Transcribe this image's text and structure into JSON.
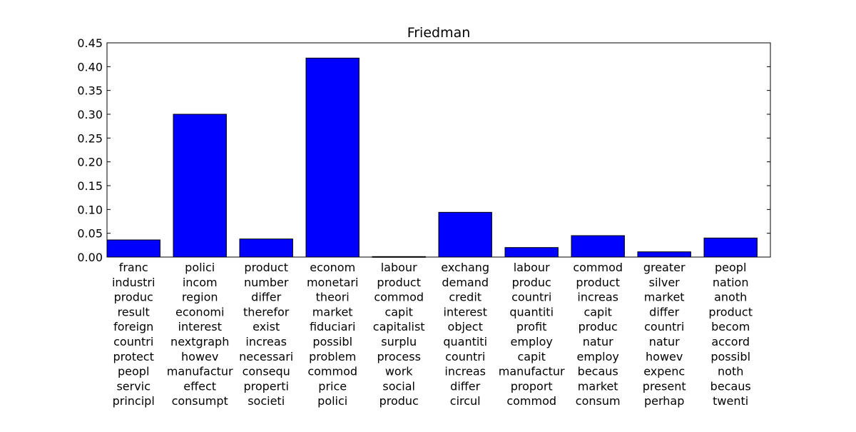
{
  "chart_data": {
    "type": "bar",
    "title": "Friedman",
    "xlabel": "",
    "ylabel": "",
    "ylim": [
      0,
      0.45
    ],
    "yticks": [
      "0.00",
      "0.05",
      "0.10",
      "0.15",
      "0.20",
      "0.25",
      "0.30",
      "0.35",
      "0.40",
      "0.45"
    ],
    "grid": false,
    "bar_color": "#0000ff",
    "edge_color": "#000000",
    "categories": [
      [
        "franc",
        "industri",
        "produc",
        "result",
        "foreign",
        "countri",
        "protect",
        "peopl",
        "servic",
        "principl"
      ],
      [
        "polici",
        "incom",
        "region",
        "economi",
        "interest",
        "nextgraph",
        "howev",
        "manufactur",
        "effect",
        "consumpt"
      ],
      [
        "product",
        "number",
        "differ",
        "therefor",
        "exist",
        "increas",
        "necessari",
        "consequ",
        "properti",
        "societi"
      ],
      [
        "econom",
        "monetari",
        "theori",
        "market",
        "fiduciari",
        "possibl",
        "problem",
        "commod",
        "price",
        "polici"
      ],
      [
        "labour",
        "product",
        "commod",
        "capit",
        "capitalist",
        "surplu",
        "process",
        "work",
        "social",
        "produc"
      ],
      [
        "exchang",
        "demand",
        "credit",
        "interest",
        "object",
        "quantiti",
        "countri",
        "increas",
        "differ",
        "circul"
      ],
      [
        "labour",
        "produc",
        "countri",
        "quantiti",
        "profit",
        "employ",
        "capit",
        "manufactur",
        "proport",
        "commod"
      ],
      [
        "commod",
        "product",
        "increas",
        "capit",
        "produc",
        "natur",
        "employ",
        "becaus",
        "market",
        "consum"
      ],
      [
        "greater",
        "silver",
        "market",
        "differ",
        "countri",
        "natur",
        "howev",
        "expenc",
        "present",
        "perhap"
      ],
      [
        "peopl",
        "nation",
        "anoth",
        "product",
        "becom",
        "accord",
        "possibl",
        "noth",
        "becaus",
        "twenti"
      ]
    ],
    "values": [
      0.036,
      0.3,
      0.038,
      0.418,
      0.001,
      0.094,
      0.02,
      0.045,
      0.011,
      0.04
    ]
  }
}
